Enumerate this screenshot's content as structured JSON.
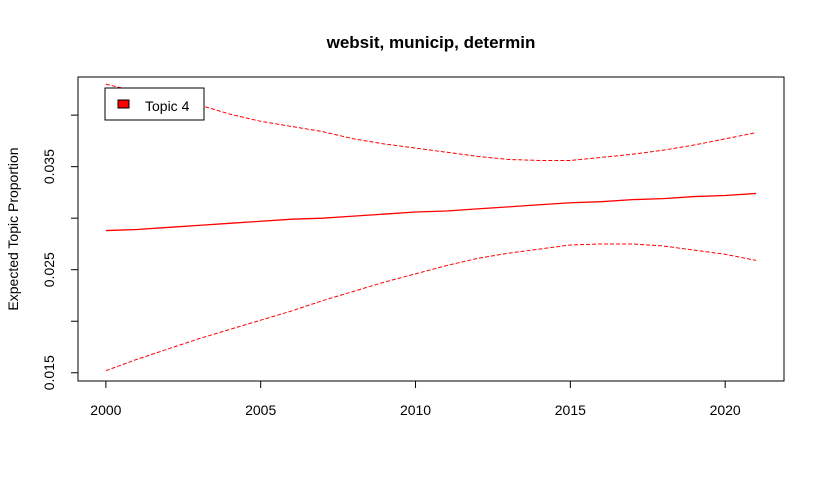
{
  "chart_data": {
    "type": "line",
    "title": "websit, municip, determin",
    "xlabel": "",
    "ylabel": "Expected Topic Proportion",
    "xlim": [
      1999.1,
      2021.9
    ],
    "ylim": [
      0.0142,
      0.0437
    ],
    "x_ticks": [
      2000,
      2005,
      2010,
      2015,
      2020
    ],
    "y_ticks": [
      0.015,
      0.025,
      0.035
    ],
    "y_tick_labels": [
      "0.015",
      "0.025",
      "0.035"
    ],
    "legend": {
      "position": "top-left",
      "entries": [
        "Topic 4"
      ]
    },
    "grid": false,
    "colors": {
      "series": "#ff0000",
      "legend_swatch": "#ff0000"
    },
    "x": [
      2000,
      2001,
      2002,
      2003,
      2004,
      2005,
      2006,
      2007,
      2008,
      2009,
      2010,
      2011,
      2012,
      2013,
      2014,
      2015,
      2016,
      2017,
      2018,
      2019,
      2020,
      2021
    ],
    "series": [
      {
        "name": "Topic 4",
        "style": "solid",
        "values": [
          0.0288,
          0.0289,
          0.0291,
          0.0293,
          0.0295,
          0.0297,
          0.0299,
          0.03,
          0.0302,
          0.0304,
          0.0306,
          0.0307,
          0.0309,
          0.0311,
          0.0313,
          0.0315,
          0.0316,
          0.0318,
          0.0319,
          0.0321,
          0.0322,
          0.0324
        ]
      },
      {
        "name": "",
        "style": "dashed",
        "values": [
          0.043,
          0.0423,
          0.0416,
          0.041,
          0.0401,
          0.0394,
          0.0389,
          0.0384,
          0.0377,
          0.0372,
          0.0368,
          0.0364,
          0.036,
          0.0357,
          0.0356,
          0.0356,
          0.0359,
          0.0362,
          0.0366,
          0.0371,
          0.0377,
          0.0383
        ]
      },
      {
        "name": "",
        "style": "dashed",
        "values": [
          0.0152,
          0.0163,
          0.0173,
          0.0183,
          0.0192,
          0.0201,
          0.021,
          0.022,
          0.0229,
          0.0238,
          0.0246,
          0.0254,
          0.0261,
          0.0266,
          0.027,
          0.0274,
          0.0275,
          0.0275,
          0.0273,
          0.0269,
          0.0265,
          0.0259
        ]
      }
    ]
  }
}
